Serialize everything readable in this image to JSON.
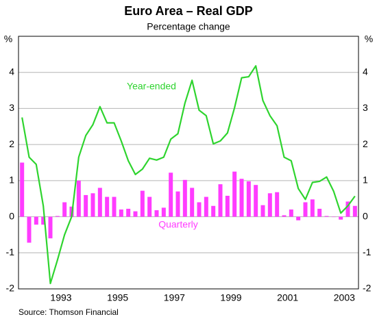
{
  "chart_data": {
    "type": "bar",
    "title": "Euro Area – Real GDP",
    "subtitle": "Percentage change",
    "y_label": "%",
    "y2_label": "%",
    "source": "Source: Thomson Financial",
    "annotations": [
      "Year-ended",
      "Quarterly"
    ],
    "x": [
      1992.125,
      1992.375,
      1992.625,
      1992.875,
      1993.125,
      1993.375,
      1993.625,
      1993.875,
      1994.125,
      1994.375,
      1994.625,
      1994.875,
      1995.125,
      1995.375,
      1995.625,
      1995.875,
      1996.125,
      1996.375,
      1996.625,
      1996.875,
      1997.125,
      1997.375,
      1997.625,
      1997.875,
      1998.125,
      1998.375,
      1998.625,
      1998.875,
      1999.125,
      1999.375,
      1999.625,
      1999.875,
      2000.125,
      2000.375,
      2000.625,
      2000.875,
      2001.125,
      2001.375,
      2001.625,
      2001.875,
      2002.125,
      2002.375,
      2002.625,
      2002.875,
      2003.125,
      2003.375,
      2003.625,
      2003.875
    ],
    "xlim": [
      1992,
      2004
    ],
    "xticks": [
      {
        "value": 1993.5,
        "label": "1993"
      },
      {
        "value": 1995.5,
        "label": "1995"
      },
      {
        "value": 1997.5,
        "label": "1997"
      },
      {
        "value": 1999.5,
        "label": "1999"
      },
      {
        "value": 2001.5,
        "label": "2001"
      },
      {
        "value": 2003.5,
        "label": "2003"
      }
    ],
    "ylim": [
      -2,
      5
    ],
    "yticks": [
      -2,
      -1,
      0,
      1,
      2,
      3,
      4
    ],
    "y2lim": [
      -2,
      5
    ],
    "y2ticks": [
      -2,
      -1,
      0,
      1,
      2,
      3,
      4
    ],
    "grid": true,
    "series": [
      {
        "name": "Quarterly",
        "type": "bar",
        "color": "#ff3cff",
        "values": [
          1.5,
          -0.72,
          -0.22,
          -0.22,
          -0.6,
          0.02,
          0.4,
          0.28,
          1.0,
          0.6,
          0.65,
          0.8,
          0.55,
          0.55,
          0.2,
          0.22,
          0.15,
          0.72,
          0.55,
          0.18,
          0.25,
          1.22,
          0.7,
          1.02,
          0.8,
          0.4,
          0.55,
          0.3,
          0.9,
          0.58,
          1.25,
          1.05,
          0.98,
          0.88,
          0.32,
          0.65,
          0.68,
          0.04,
          0.2,
          -0.1,
          0.4,
          0.48,
          0.22,
          0.02,
          0.0,
          -0.08,
          0.42,
          0.3
        ]
      },
      {
        "name": "Year-ended",
        "type": "line",
        "color": "#2ed42e",
        "values": [
          2.75,
          1.65,
          1.45,
          0.3,
          -1.85,
          -1.2,
          -0.5,
          0.0,
          1.65,
          2.25,
          2.55,
          3.05,
          2.6,
          2.6,
          2.1,
          1.55,
          1.17,
          1.32,
          1.62,
          1.57,
          1.65,
          2.15,
          2.3,
          3.15,
          3.78,
          2.95,
          2.8,
          2.02,
          2.1,
          2.32,
          3.02,
          3.85,
          3.88,
          4.18,
          3.22,
          2.8,
          2.52,
          1.65,
          1.55,
          0.78,
          0.48,
          0.95,
          0.98,
          1.1,
          0.7,
          0.1,
          0.3,
          0.57
        ]
      }
    ]
  }
}
